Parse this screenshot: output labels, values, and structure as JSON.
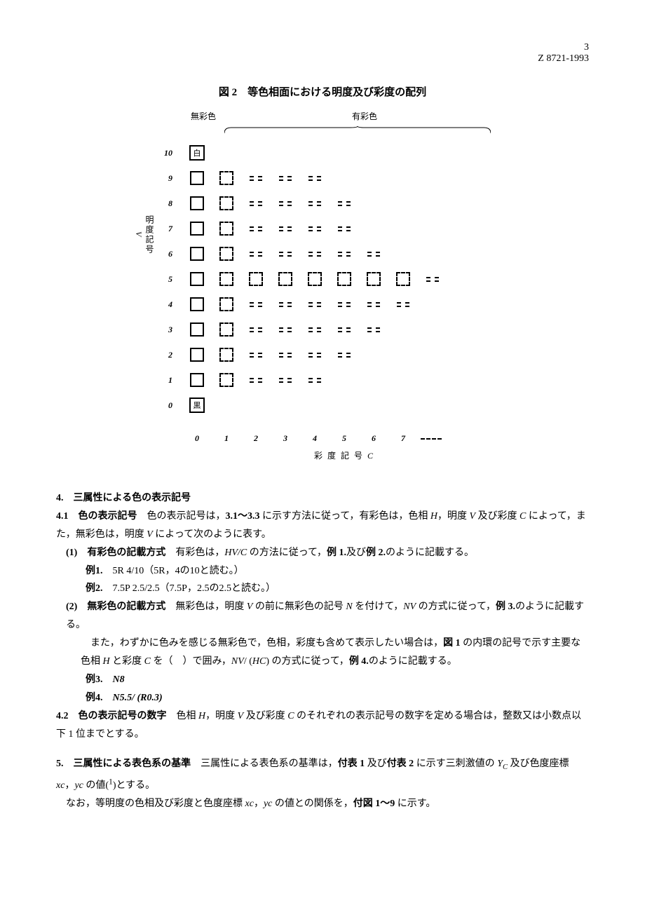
{
  "page": {
    "number": "3",
    "standard": "Z 8721-1993"
  },
  "figure": {
    "title": "図 2　等色相面における明度及び彩度の配列",
    "top_achromatic": "無彩色",
    "top_chromatic": "有彩色",
    "y_axis_title": "明度記号",
    "y_axis_var": "V",
    "x_axis_title": "彩 度 記 号",
    "x_axis_var": "C",
    "white_label": "白",
    "black_label": "黒",
    "y_ticks": [
      "10",
      "9",
      "8",
      "7",
      "6",
      "5",
      "4",
      "3",
      "2",
      "1",
      "0"
    ],
    "x_ticks": [
      "0",
      "1",
      "2",
      "3",
      "4",
      "5",
      "6",
      "7"
    ],
    "grid": {
      "10": {
        "0": "white"
      },
      "9": {
        "0": "solid",
        "1": "dashed",
        "2": "dd",
        "3": "dd",
        "4": "dd"
      },
      "8": {
        "0": "solid",
        "1": "dashed",
        "2": "dd",
        "3": "dd",
        "4": "dd",
        "5": "dd"
      },
      "7": {
        "0": "solid",
        "1": "dashed",
        "2": "dd",
        "3": "dd",
        "4": "dd",
        "5": "dd"
      },
      "6": {
        "0": "solid",
        "1": "dashed",
        "2": "dd",
        "3": "dd",
        "4": "dd",
        "5": "dd",
        "6": "dd"
      },
      "5": {
        "0": "solid",
        "1": "dashed",
        "2": "dashed",
        "3": "dashed",
        "4": "dashed",
        "5": "dashed",
        "6": "dashed",
        "7": "dashed",
        "8": "dd"
      },
      "4": {
        "0": "solid",
        "1": "dashed",
        "2": "dd",
        "3": "dd",
        "4": "dd",
        "5": "dd",
        "6": "dd",
        "7": "dd"
      },
      "3": {
        "0": "solid",
        "1": "dashed",
        "2": "dd",
        "3": "dd",
        "4": "dd",
        "5": "dd",
        "6": "dd"
      },
      "2": {
        "0": "solid",
        "1": "dashed",
        "2": "dd",
        "3": "dd",
        "4": "dd",
        "5": "dd"
      },
      "1": {
        "0": "solid",
        "1": "dashed",
        "2": "dd",
        "3": "dd",
        "4": "dd"
      },
      "0": {
        "0": "black"
      }
    }
  },
  "text": {
    "s4_heading": "4.　三属性による色の表示記号",
    "s4_1_label": "4.1　色の表示記号",
    "s4_1_body": "　色の表示記号は，3.1～3.3 に示す方法に従って，有彩色は，色相 H，明度 V 及び彩度 C によって，また，無彩色は，明度 V によって次のように表す。",
    "s4_1_1_label": "(1)　有彩色の記載方式",
    "s4_1_1_body": "　有彩色は，HV/C の方法に従って，例 1.及び例 2.のように記載する。",
    "ex1_label": "例1.",
    "ex1_body": "　5R 4/10（5R，4の10と読む。）",
    "ex2_label": "例2.",
    "ex2_body": "　7.5P 2.5/2.5（7.5P，2.5の2.5と読む。）",
    "s4_1_2_label": "(2)　無彩色の記載方式",
    "s4_1_2_body1": "　無彩色は，明度 V の前に無彩色の記号 N を付けて，NV の方式に従って，例 3.のように記載する。",
    "s4_1_2_body2": "また，わずかに色みを感じる無彩色で，色相，彩度も含めて表示したい場合は，図 1 の内環の記号で示す主要な色相 H と彩度 C を（　）で囲み，NV/ (HC) の方式に従って，例 4.のように記載する。",
    "ex3_label": "例3.",
    "ex3_body": "　N8",
    "ex4_label": "例4.",
    "ex4_body": "　N5.5/ (R0.3)",
    "s4_2_label": "4.2　色の表示記号の数字",
    "s4_2_body": "　色相 H，明度 V 及び彩度 C のそれぞれの表示記号の数字を定める場合は，整数又は小数点以下 1 位までとする。",
    "s5_label": "5.　三属性による表色系の基準",
    "s5_body1": "　三属性による表色系の基準は，付表 1 及び付表 2 に示す三刺激値の Yc 及び色度座標 xc，yc の値(¹)とする。",
    "s5_body2": "なお，等明度の色相及び彩度と色度座標 xc，yc の値との関係を，付図 1～9 に示す。"
  }
}
